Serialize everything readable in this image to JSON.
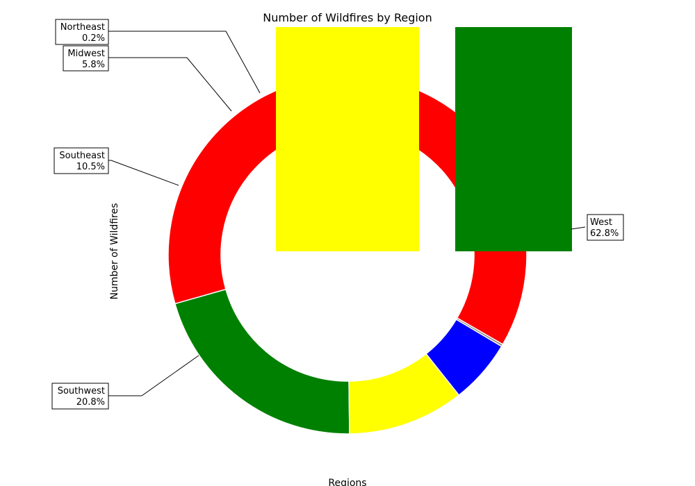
{
  "chart_data": {
    "type": "pie",
    "donut": true,
    "title": "Number of Wildfires by Region",
    "xlabel": "Regions",
    "ylabel": "Number of Wildfires",
    "slices": [
      {
        "label": "West",
        "pct": "62.8%",
        "value": 62.8,
        "color": "#ff0000"
      },
      {
        "label": "Southwest",
        "pct": "20.8%",
        "value": 20.8,
        "color": "#008000"
      },
      {
        "label": "Southeast",
        "pct": "10.5%",
        "value": 10.5,
        "color": "#ffff00"
      },
      {
        "label": "Midwest",
        "pct": "5.8%",
        "value": 5.8,
        "color": "#0000ff"
      },
      {
        "label": "Northeast",
        "pct": "0.2%",
        "value": 0.2,
        "color": "#808080"
      }
    ],
    "overlay_bars": [
      {
        "color": "#ffff00"
      },
      {
        "color": "#008000"
      }
    ]
  }
}
